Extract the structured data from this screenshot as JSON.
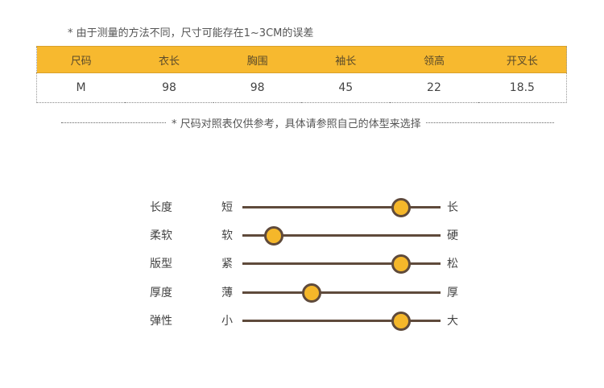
{
  "note_top": "* 由于测量的方法不同，尺寸可能存在1~3CM的误差",
  "table": {
    "headers": [
      "尺码",
      "衣长",
      "胸围",
      "袖长",
      "领高",
      "开叉长"
    ],
    "rows": [
      [
        "M",
        "98",
        "98",
        "45",
        "22",
        "18.5"
      ]
    ]
  },
  "divider_text": "* 尺码对照表仅供参考，具体请参照自己的体型来选择",
  "attributes": [
    {
      "label": "长度",
      "left": "短",
      "right": "长",
      "level": 0.8
    },
    {
      "label": "柔软",
      "left": "软",
      "right": "硬",
      "level": 0.16
    },
    {
      "label": "版型",
      "left": "紧",
      "right": "松",
      "level": 0.8
    },
    {
      "label": "厚度",
      "left": "薄",
      "right": "厚",
      "level": 0.35
    },
    {
      "label": "弹性",
      "left": "小",
      "right": "大",
      "level": 0.8
    }
  ],
  "colors": {
    "header_bg": "#f7b92f",
    "knob": "#f5b72a",
    "track": "#5f4a3b"
  }
}
